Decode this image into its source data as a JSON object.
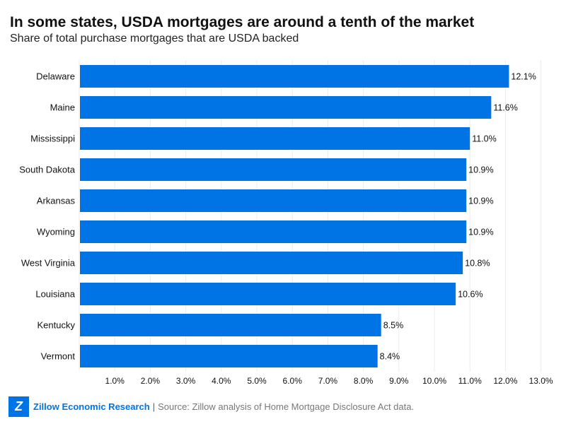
{
  "chart_data": {
    "type": "bar",
    "orientation": "horizontal",
    "title": "In some states, USDA mortgages are around a tenth of the market",
    "subtitle": "Share of total purchase mortgages that are USDA backed",
    "categories": [
      "Delaware",
      "Maine",
      "Mississippi",
      "South Dakota",
      "Arkansas",
      "Wyoming",
      "West Virginia",
      "Louisiana",
      "Kentucky",
      "Vermont"
    ],
    "values": [
      12.1,
      11.6,
      11.0,
      10.9,
      10.9,
      10.9,
      10.8,
      10.6,
      8.5,
      8.4
    ],
    "data_labels": [
      "12.1%",
      "11.6%",
      "11.0%",
      "10.9%",
      "10.9%",
      "10.9%",
      "10.8%",
      "10.6%",
      "8.5%",
      "8.4%"
    ],
    "x_ticks": [
      1,
      2,
      3,
      4,
      5,
      6,
      7,
      8,
      9,
      10,
      11,
      12,
      13
    ],
    "x_tick_labels": [
      "1.0%",
      "2.0%",
      "3.0%",
      "4.0%",
      "5.0%",
      "6.0%",
      "7.0%",
      "8.0%",
      "9.0%",
      "10.0%",
      "11.0%",
      "12.0%",
      "13.0%"
    ],
    "xlim": [
      0,
      13.5
    ],
    "grid": true,
    "bar_color": "#0074E4"
  },
  "footer": {
    "brand": "Zillow Economic Research",
    "separator": "|",
    "source": "Source: Zillow analysis of Home Mortgage Disclosure Act data.",
    "logo_icon": "zillow-logo-icon"
  }
}
